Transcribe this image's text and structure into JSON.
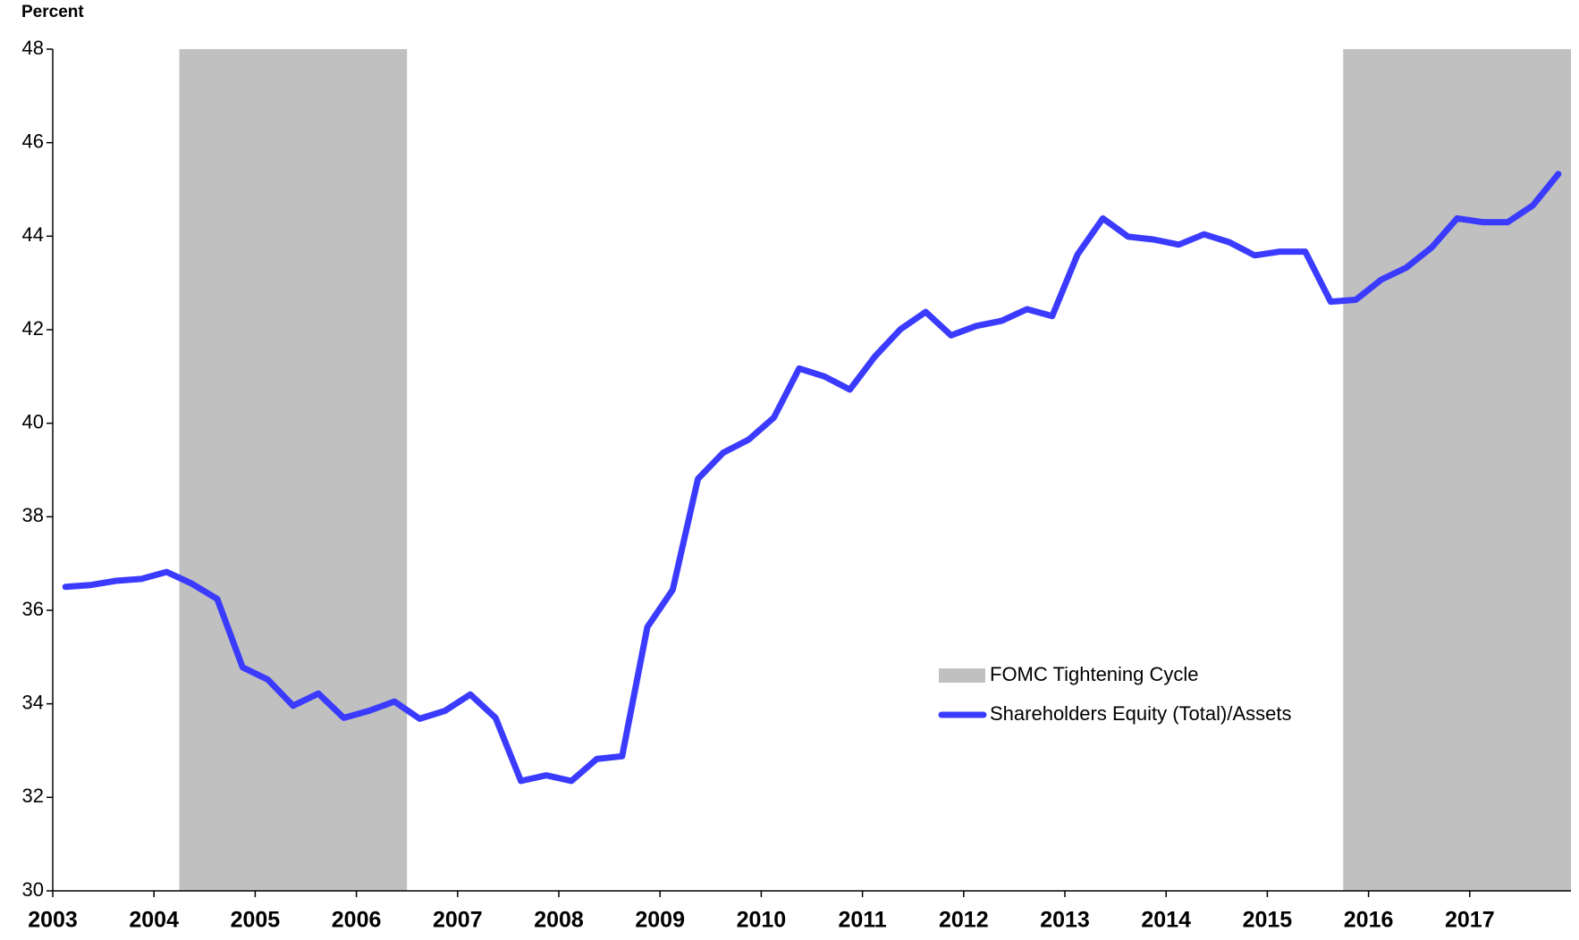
{
  "chart_data": {
    "type": "line",
    "y_axis_label": "Percent",
    "xlim": [
      2003,
      2018
    ],
    "xticks": [
      2003,
      2004,
      2005,
      2006,
      2007,
      2008,
      2009,
      2010,
      2011,
      2012,
      2013,
      2014,
      2015,
      2016,
      2017
    ],
    "ylim": [
      30,
      48
    ],
    "yticks": [
      30,
      32,
      34,
      36,
      38,
      40,
      42,
      44,
      46,
      48
    ],
    "x": [
      2003.125,
      2003.375,
      2003.625,
      2003.875,
      2004.125,
      2004.375,
      2004.625,
      2004.875,
      2005.125,
      2005.375,
      2005.625,
      2005.875,
      2006.125,
      2006.375,
      2006.625,
      2006.875,
      2007.125,
      2007.375,
      2007.625,
      2007.875,
      2008.125,
      2008.375,
      2008.625,
      2008.875,
      2009.125,
      2009.375,
      2009.625,
      2009.875,
      2010.125,
      2010.375,
      2010.625,
      2010.875,
      2011.125,
      2011.375,
      2011.625,
      2011.875,
      2012.125,
      2012.375,
      2012.625,
      2012.875,
      2013.125,
      2013.375,
      2013.625,
      2013.875,
      2014.125,
      2014.375,
      2014.625,
      2014.875,
      2015.125,
      2015.375,
      2015.625,
      2015.875,
      2016.125,
      2016.375,
      2016.625,
      2016.875,
      2017.125,
      2017.375,
      2017.625,
      2017.875
    ],
    "bands": {
      "name": "FOMC Tightening Cycle",
      "color": "#c0c0c0",
      "ranges": [
        [
          2004.25,
          2006.5
        ],
        [
          2015.75,
          2018
        ]
      ]
    },
    "series": [
      {
        "name": "Shareholders Equity (Total)/Assets",
        "color": "#3b3bff",
        "values": [
          36.5,
          36.54,
          36.63,
          36.67,
          36.82,
          36.57,
          36.24,
          34.78,
          34.52,
          33.96,
          34.22,
          33.7,
          33.85,
          34.05,
          33.68,
          33.85,
          34.2,
          33.7,
          32.35,
          32.47,
          32.35,
          32.82,
          32.88,
          35.64,
          36.44,
          38.81,
          39.37,
          39.65,
          40.12,
          41.17,
          41.0,
          40.72,
          41.43,
          42.01,
          42.38,
          41.88,
          42.08,
          42.19,
          42.44,
          42.29,
          43.61,
          44.38,
          43.99,
          43.93,
          43.82,
          44.04,
          43.87,
          43.59,
          43.67,
          43.67,
          42.6,
          42.64,
          43.07,
          43.33,
          43.76,
          44.38,
          44.3,
          44.3,
          44.66,
          45.33
        ]
      }
    ]
  }
}
